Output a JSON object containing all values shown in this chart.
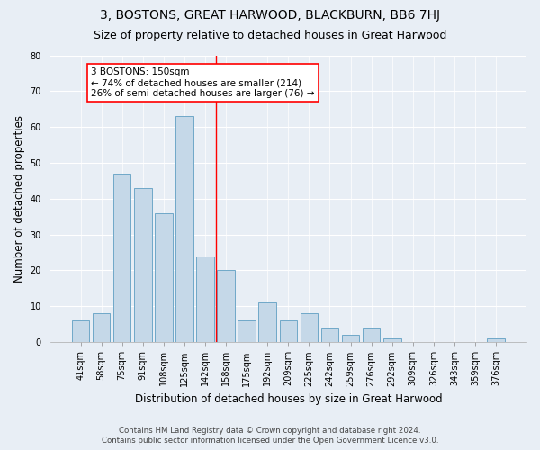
{
  "title": "3, BOSTONS, GREAT HARWOOD, BLACKBURN, BB6 7HJ",
  "subtitle": "Size of property relative to detached houses in Great Harwood",
  "xlabel": "Distribution of detached houses by size in Great Harwood",
  "ylabel": "Number of detached properties",
  "categories": [
    "41sqm",
    "58sqm",
    "75sqm",
    "91sqm",
    "108sqm",
    "125sqm",
    "142sqm",
    "158sqm",
    "175sqm",
    "192sqm",
    "209sqm",
    "225sqm",
    "242sqm",
    "259sqm",
    "276sqm",
    "292sqm",
    "309sqm",
    "326sqm",
    "343sqm",
    "359sqm",
    "376sqm"
  ],
  "values": [
    6,
    8,
    47,
    43,
    36,
    63,
    24,
    20,
    6,
    11,
    6,
    8,
    4,
    2,
    4,
    1,
    0,
    0,
    0,
    0,
    1
  ],
  "bar_color": "#c5d8e8",
  "bar_edge_color": "#6fa8c8",
  "background_color": "#e8eef5",
  "annotation_text": "3 BOSTONS: 150sqm\n← 74% of detached houses are smaller (214)\n26% of semi-detached houses are larger (76) →",
  "vline_index": 6.5,
  "ylim": [
    0,
    80
  ],
  "yticks": [
    0,
    10,
    20,
    30,
    40,
    50,
    60,
    70,
    80
  ],
  "footer1": "Contains HM Land Registry data © Crown copyright and database right 2024.",
  "footer2": "Contains public sector information licensed under the Open Government Licence v3.0.",
  "title_fontsize": 10,
  "subtitle_fontsize": 9,
  "axis_label_fontsize": 8.5,
  "tick_fontsize": 7,
  "annotation_fontsize": 7.5
}
